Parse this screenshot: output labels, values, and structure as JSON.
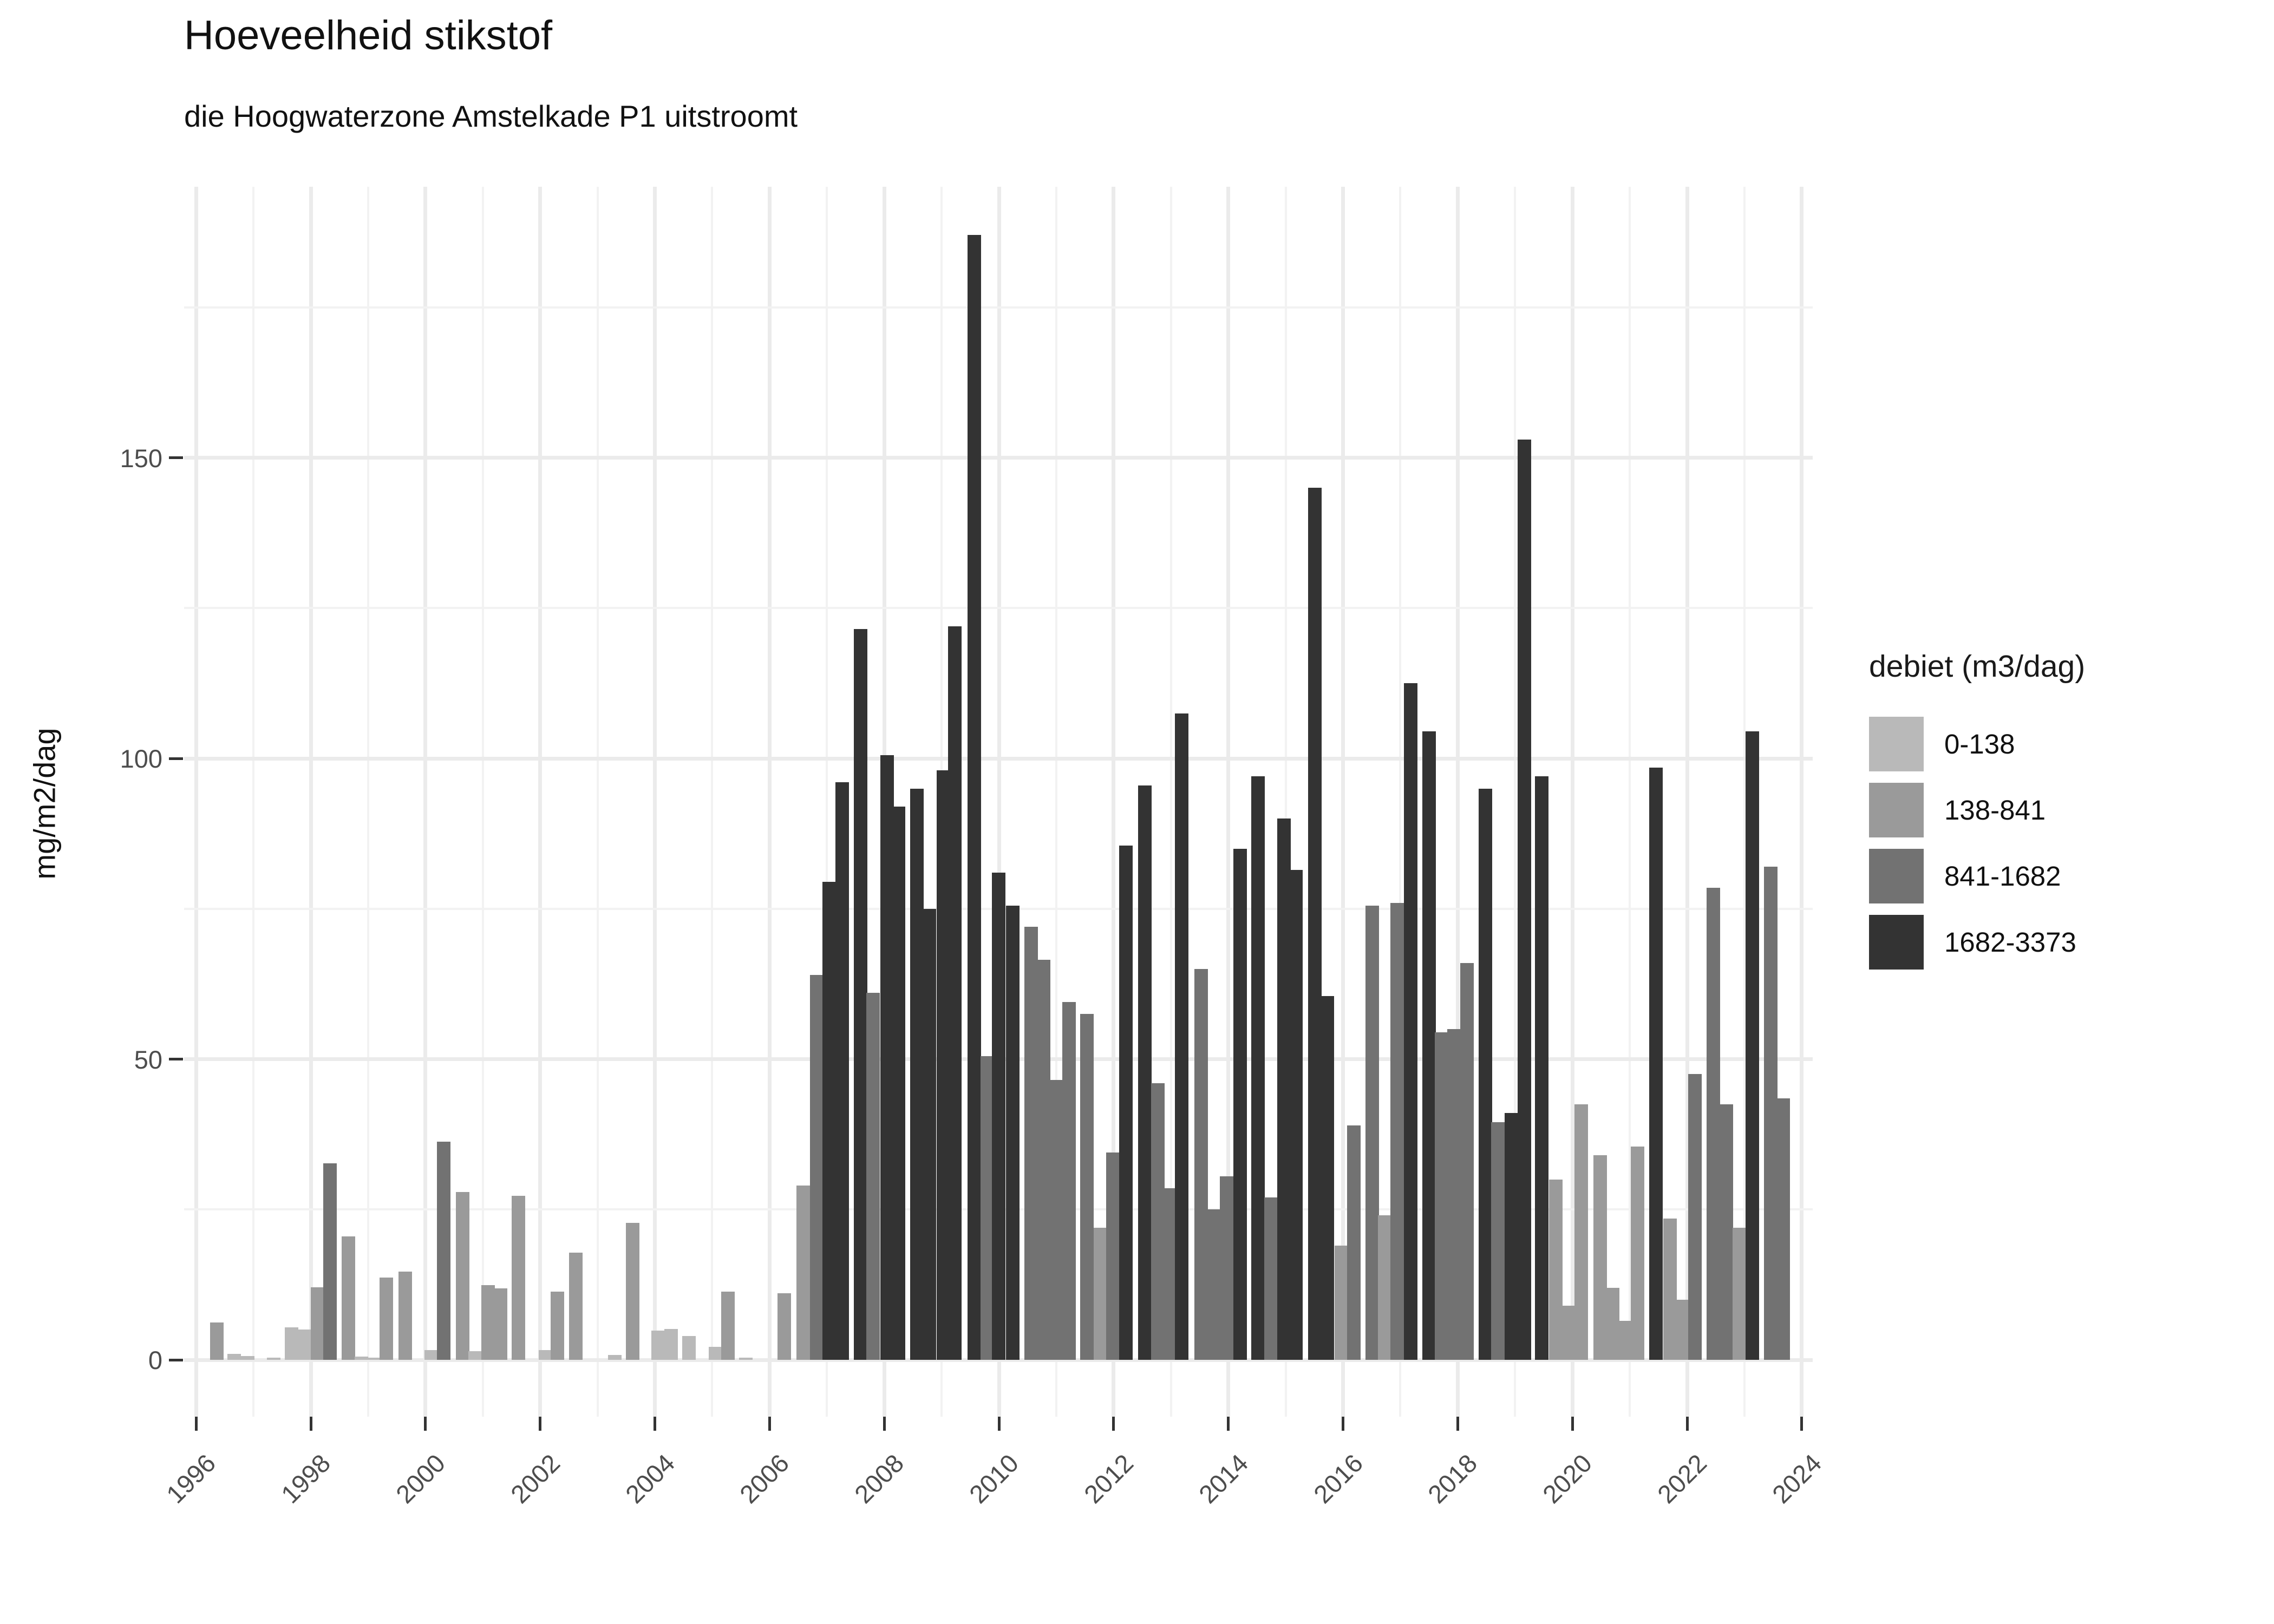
{
  "title": "Hoeveelheid stikstof",
  "subtitle": "die Hoogwaterzone Amstelkade P1 uitstroomt",
  "chart_data": {
    "type": "bar",
    "title": "Hoeveelheid stikstof",
    "subtitle": "die Hoogwaterzone Amstelkade P1 uitstroomt",
    "xlabel": "",
    "ylabel": "mg/m2/dag",
    "ylim": [
      0,
      196
    ],
    "yticks": [
      0,
      50,
      100,
      150
    ],
    "yminor": [
      25,
      75,
      125,
      175
    ],
    "xticks": [
      1996,
      1998,
      2000,
      2002,
      2004,
      2006,
      2008,
      2010,
      2012,
      2014,
      2016,
      2018,
      2020,
      2022,
      2024
    ],
    "xminor": [
      1997,
      1999,
      2001,
      2003,
      2005,
      2007,
      2009,
      2011,
      2013,
      2015,
      2017,
      2019,
      2021,
      2023
    ],
    "xrange": [
      1995.79,
      2024.19
    ],
    "grid": "on",
    "legend": {
      "title": "debiet (m3/dag)",
      "position": "right",
      "entries": [
        {
          "label": "0-138",
          "color": "#b9b9b9"
        },
        {
          "label": "138-841",
          "color": "#9a9a9a"
        },
        {
          "label": "841-1682",
          "color": "#727272"
        },
        {
          "label": "1682-3373",
          "color": "#333333"
        }
      ]
    },
    "bar_note": "each bar = quarterly value; x = fractional year of quarter start; v = mg/m2/dag; c = legend category index",
    "bars": [
      {
        "x": 1996.24,
        "v": 6.2,
        "c": 1
      },
      {
        "x": 1996.55,
        "v": 1.0,
        "c": 0
      },
      {
        "x": 1996.78,
        "v": 0.6,
        "c": 0
      },
      {
        "x": 1997.23,
        "v": 0.4,
        "c": 0
      },
      {
        "x": 1997.55,
        "v": 5.4,
        "c": 0
      },
      {
        "x": 1997.77,
        "v": 5.0,
        "c": 0
      },
      {
        "x": 1998.0,
        "v": 12.1,
        "c": 1
      },
      {
        "x": 1998.22,
        "v": 32.7,
        "c": 2
      },
      {
        "x": 1998.54,
        "v": 20.5,
        "c": 1
      },
      {
        "x": 1998.76,
        "v": 0.5,
        "c": 0
      },
      {
        "x": 1999.0,
        "v": 0.4,
        "c": 0
      },
      {
        "x": 1999.2,
        "v": 13.7,
        "c": 1
      },
      {
        "x": 1999.53,
        "v": 14.7,
        "c": 1
      },
      {
        "x": 1999.98,
        "v": 1.6,
        "c": 0
      },
      {
        "x": 2000.2,
        "v": 36.3,
        "c": 2
      },
      {
        "x": 2000.53,
        "v": 27.9,
        "c": 1
      },
      {
        "x": 2000.75,
        "v": 1.4,
        "c": 0
      },
      {
        "x": 2000.97,
        "v": 12.4,
        "c": 1
      },
      {
        "x": 2001.19,
        "v": 11.9,
        "c": 1
      },
      {
        "x": 2001.5,
        "v": 27.3,
        "c": 1
      },
      {
        "x": 2001.97,
        "v": 1.6,
        "c": 0
      },
      {
        "x": 2002.18,
        "v": 11.3,
        "c": 1
      },
      {
        "x": 2002.5,
        "v": 17.8,
        "c": 1
      },
      {
        "x": 2003.18,
        "v": 0.8,
        "c": 0
      },
      {
        "x": 2003.49,
        "v": 22.8,
        "c": 1
      },
      {
        "x": 2003.94,
        "v": 4.9,
        "c": 0
      },
      {
        "x": 2004.16,
        "v": 5.1,
        "c": 0
      },
      {
        "x": 2004.48,
        "v": 4.0,
        "c": 0
      },
      {
        "x": 2004.94,
        "v": 2.2,
        "c": 0
      },
      {
        "x": 2005.16,
        "v": 11.3,
        "c": 1
      },
      {
        "x": 2005.47,
        "v": 0.4,
        "c": 0
      },
      {
        "x": 2006.14,
        "v": 11.1,
        "c": 1
      },
      {
        "x": 2006.47,
        "v": 29.0,
        "c": 1
      },
      {
        "x": 2006.7,
        "v": 64.0,
        "c": 2
      },
      {
        "x": 2006.92,
        "v": 79.5,
        "c": 3
      },
      {
        "x": 2007.15,
        "v": 96.0,
        "c": 3
      },
      {
        "x": 2007.47,
        "v": 121.5,
        "c": 3
      },
      {
        "x": 2007.69,
        "v": 61.0,
        "c": 2
      },
      {
        "x": 2007.93,
        "v": 100.5,
        "c": 3
      },
      {
        "x": 2008.13,
        "v": 92.0,
        "c": 3
      },
      {
        "x": 2008.45,
        "v": 95.0,
        "c": 3
      },
      {
        "x": 2008.67,
        "v": 75.0,
        "c": 3
      },
      {
        "x": 2008.91,
        "v": 98.0,
        "c": 3
      },
      {
        "x": 2009.11,
        "v": 122.0,
        "c": 3
      },
      {
        "x": 2009.45,
        "v": 187.0,
        "c": 3
      },
      {
        "x": 2009.68,
        "v": 50.5,
        "c": 2
      },
      {
        "x": 2009.88,
        "v": 81.0,
        "c": 3
      },
      {
        "x": 2010.12,
        "v": 75.5,
        "c": 3
      },
      {
        "x": 2010.44,
        "v": 72.0,
        "c": 2
      },
      {
        "x": 2010.66,
        "v": 66.5,
        "c": 2
      },
      {
        "x": 2010.88,
        "v": 46.5,
        "c": 2
      },
      {
        "x": 2011.1,
        "v": 59.5,
        "c": 2
      },
      {
        "x": 2011.42,
        "v": 57.5,
        "c": 2
      },
      {
        "x": 2011.65,
        "v": 22.0,
        "c": 1
      },
      {
        "x": 2011.87,
        "v": 34.5,
        "c": 2
      },
      {
        "x": 2012.1,
        "v": 85.5,
        "c": 3
      },
      {
        "x": 2012.43,
        "v": 95.5,
        "c": 3
      },
      {
        "x": 2012.65,
        "v": 46.0,
        "c": 2
      },
      {
        "x": 2012.87,
        "v": 28.5,
        "c": 2
      },
      {
        "x": 2013.07,
        "v": 107.5,
        "c": 3
      },
      {
        "x": 2013.41,
        "v": 65.0,
        "c": 2
      },
      {
        "x": 2013.62,
        "v": 25.0,
        "c": 2
      },
      {
        "x": 2013.85,
        "v": 30.5,
        "c": 2
      },
      {
        "x": 2014.09,
        "v": 85.0,
        "c": 3
      },
      {
        "x": 2014.4,
        "v": 97.0,
        "c": 3
      },
      {
        "x": 2014.63,
        "v": 27.0,
        "c": 2
      },
      {
        "x": 2014.85,
        "v": 90.0,
        "c": 3
      },
      {
        "x": 2015.06,
        "v": 81.5,
        "c": 3
      },
      {
        "x": 2015.39,
        "v": 145.0,
        "c": 3
      },
      {
        "x": 2015.61,
        "v": 60.5,
        "c": 3
      },
      {
        "x": 2015.85,
        "v": 19.0,
        "c": 1
      },
      {
        "x": 2016.07,
        "v": 39.0,
        "c": 2
      },
      {
        "x": 2016.39,
        "v": 75.5,
        "c": 2
      },
      {
        "x": 2016.61,
        "v": 24.0,
        "c": 1
      },
      {
        "x": 2016.83,
        "v": 76.0,
        "c": 2
      },
      {
        "x": 2017.06,
        "v": 112.5,
        "c": 3
      },
      {
        "x": 2017.38,
        "v": 104.5,
        "c": 3
      },
      {
        "x": 2017.6,
        "v": 54.5,
        "c": 2
      },
      {
        "x": 2017.82,
        "v": 55.0,
        "c": 2
      },
      {
        "x": 2018.04,
        "v": 66.0,
        "c": 2
      },
      {
        "x": 2018.36,
        "v": 95.0,
        "c": 3
      },
      {
        "x": 2018.58,
        "v": 39.5,
        "c": 2
      },
      {
        "x": 2018.82,
        "v": 41.0,
        "c": 3
      },
      {
        "x": 2019.04,
        "v": 153.0,
        "c": 3
      },
      {
        "x": 2019.35,
        "v": 97.0,
        "c": 3
      },
      {
        "x": 2019.59,
        "v": 30.0,
        "c": 1
      },
      {
        "x": 2019.8,
        "v": 9.0,
        "c": 1
      },
      {
        "x": 2020.04,
        "v": 42.5,
        "c": 1
      },
      {
        "x": 2020.37,
        "v": 34.0,
        "c": 1
      },
      {
        "x": 2020.58,
        "v": 12.0,
        "c": 1
      },
      {
        "x": 2020.81,
        "v": 6.5,
        "c": 1
      },
      {
        "x": 2021.02,
        "v": 35.5,
        "c": 1
      },
      {
        "x": 2021.34,
        "v": 98.5,
        "c": 3
      },
      {
        "x": 2021.58,
        "v": 23.5,
        "c": 1
      },
      {
        "x": 2021.8,
        "v": 10.0,
        "c": 1
      },
      {
        "x": 2022.02,
        "v": 47.5,
        "c": 2
      },
      {
        "x": 2022.34,
        "v": 78.5,
        "c": 2
      },
      {
        "x": 2022.57,
        "v": 42.5,
        "c": 2
      },
      {
        "x": 2022.79,
        "v": 22.0,
        "c": 1
      },
      {
        "x": 2023.02,
        "v": 104.5,
        "c": 3
      },
      {
        "x": 2023.34,
        "v": 82.0,
        "c": 2
      },
      {
        "x": 2023.56,
        "v": 43.5,
        "c": 2
      }
    ]
  }
}
